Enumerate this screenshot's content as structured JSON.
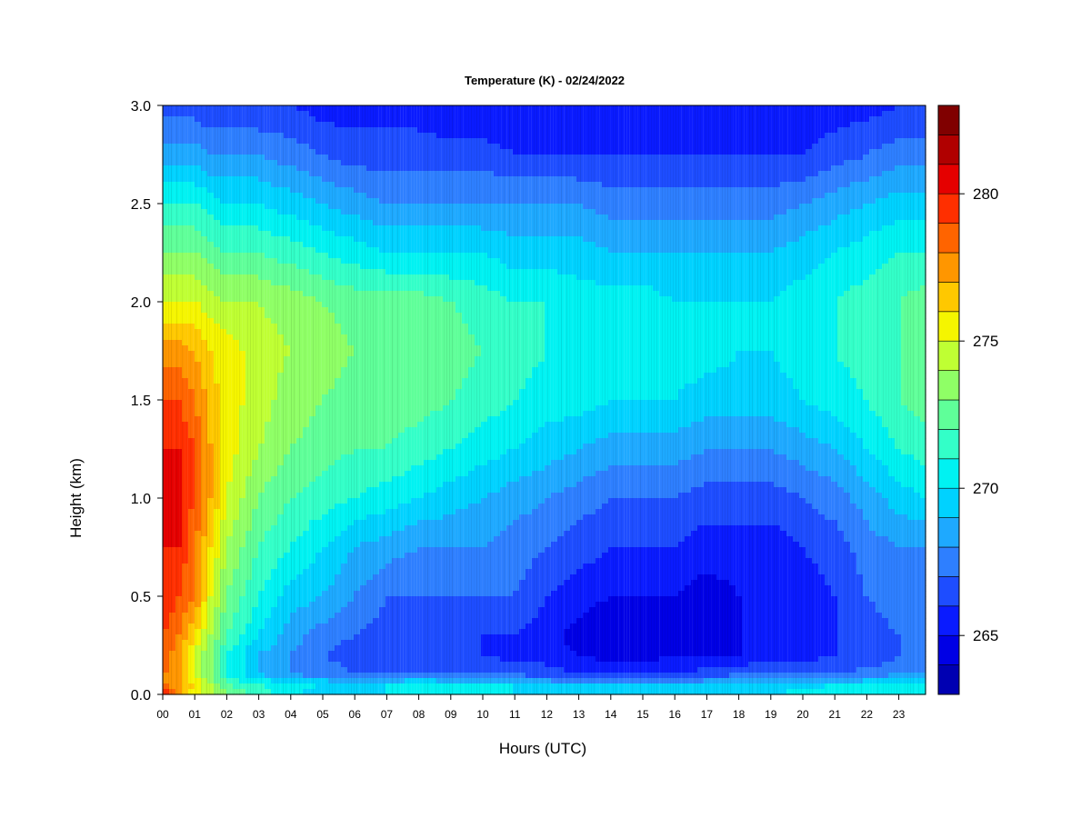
{
  "chart_data": {
    "type": "heatmap",
    "title": "Temperature (K) - 02/24/2022",
    "xlabel": "Hours (UTC)",
    "ylabel": "Height (km)",
    "x_ticks": [
      "00",
      "01",
      "02",
      "03",
      "04",
      "05",
      "06",
      "07",
      "08",
      "09",
      "10",
      "11",
      "12",
      "13",
      "14",
      "15",
      "16",
      "17",
      "18",
      "19",
      "20",
      "21",
      "22",
      "23"
    ],
    "xlim": [
      0,
      23.8
    ],
    "y_ticks": [
      "0.0",
      "0.5",
      "1.0",
      "1.5",
      "2.0",
      "2.5",
      "3.0"
    ],
    "ylim": [
      0,
      3.0
    ],
    "colorbar": {
      "min": 263,
      "max": 283,
      "ticks": [
        "265",
        "270",
        "275",
        "280"
      ],
      "tick_values": [
        265,
        270,
        275,
        280
      ],
      "levels": 20,
      "colors": [
        "#00007f",
        "#0000b2",
        "#0000e5",
        "#0a1bff",
        "#1e4dff",
        "#2e7fff",
        "#1ea9ff",
        "#00d2ff",
        "#00f2f2",
        "#33ffc8",
        "#5fff99",
        "#8fff66",
        "#bfff33",
        "#f5f500",
        "#ffc800",
        "#ff9600",
        "#ff6400",
        "#ff2f00",
        "#e50000",
        "#b00000",
        "#800000"
      ]
    },
    "heights_km": [
      0.0,
      0.05,
      0.1,
      0.2,
      0.3,
      0.5,
      0.75,
      1.0,
      1.25,
      1.5,
      1.75,
      2.0,
      2.25,
      2.5,
      2.75,
      3.0
    ],
    "hours": [
      0,
      0.5,
      1,
      1.5,
      2,
      3,
      4,
      5,
      6,
      7,
      8,
      9,
      10,
      11,
      12,
      13,
      14,
      15,
      16,
      17,
      18,
      19,
      20,
      21,
      22,
      23,
      23.8
    ],
    "values_K": [
      [
        282,
        278,
        276,
        275,
        274,
        272.5,
        271,
        270.5,
        270.5,
        271,
        271,
        271,
        271,
        271,
        271,
        271,
        271,
        271,
        271,
        271,
        271,
        271,
        271.5,
        272,
        272,
        272,
        272
      ],
      [
        279,
        278,
        277,
        275,
        273,
        272,
        271.5,
        271,
        271,
        271,
        271.5,
        271,
        271,
        271,
        270,
        270,
        270,
        270,
        270,
        270,
        270,
        270,
        270.5,
        271,
        271,
        271,
        271
      ],
      [
        279,
        278,
        276,
        274,
        272,
        270,
        269,
        268.5,
        268,
        268,
        268,
        268,
        268,
        268,
        267.5,
        267,
        267,
        267,
        267,
        267.5,
        268,
        268,
        268,
        268,
        268.5,
        269,
        269
      ],
      [
        280,
        278,
        276,
        274,
        272,
        270,
        269,
        268,
        267.5,
        267,
        267,
        267,
        267,
        266.5,
        266.5,
        266,
        265.5,
        265.5,
        266,
        266,
        266,
        266.5,
        266.5,
        267,
        267,
        268,
        268
      ],
      [
        280,
        279,
        277,
        275,
        273,
        271,
        269.5,
        268.5,
        268,
        267.5,
        267.5,
        267,
        267,
        267,
        266.5,
        265.5,
        265,
        265,
        265.5,
        265.5,
        266,
        266.5,
        266.5,
        267,
        267.5,
        268,
        268
      ],
      [
        281,
        280,
        279,
        276,
        274,
        272,
        270.5,
        270,
        269,
        268,
        268,
        268,
        268,
        268,
        267,
        266.5,
        266,
        266,
        266,
        265.5,
        266,
        266.5,
        266.5,
        267,
        268,
        268.5,
        268.5
      ],
      [
        281,
        281,
        279,
        277,
        275,
        273,
        272,
        271,
        270,
        269.5,
        269,
        269,
        269,
        268.5,
        268,
        267.5,
        267,
        267,
        267,
        266.5,
        266.5,
        266.5,
        267,
        267.5,
        268.5,
        269,
        269
      ],
      [
        281,
        281,
        280,
        278,
        276,
        274,
        273,
        272.5,
        272,
        271.5,
        271,
        270.5,
        270,
        269.5,
        269,
        268.5,
        268,
        268,
        268,
        267.5,
        267.5,
        267.5,
        268,
        268.5,
        269.5,
        270.5,
        271
      ],
      [
        281,
        281,
        280,
        278,
        276.5,
        275,
        274,
        273.5,
        273,
        273,
        272.5,
        272,
        271.5,
        271,
        270.5,
        270,
        269.5,
        269.5,
        269.5,
        269,
        269,
        269,
        269.5,
        270,
        271,
        272,
        272.5
      ],
      [
        280,
        280,
        279,
        277.5,
        276.5,
        275.5,
        274.5,
        274,
        273.5,
        273.5,
        273.5,
        273,
        272.5,
        272,
        271.5,
        271.5,
        271,
        271,
        271,
        270.5,
        270.5,
        270.5,
        271,
        271.5,
        272,
        273,
        273.5
      ],
      [
        278.5,
        278.5,
        278,
        277,
        276.5,
        275.5,
        275,
        274.5,
        274,
        274,
        274,
        273.5,
        273,
        272.5,
        272,
        272,
        272,
        271.5,
        271.5,
        271.5,
        271,
        271,
        271.5,
        272,
        272.5,
        273,
        273.5
      ],
      [
        276,
        276,
        276,
        275.5,
        275,
        275,
        274.5,
        274,
        273.5,
        273.5,
        273.5,
        273,
        272.5,
        272,
        272,
        271.5,
        271.5,
        271.5,
        271,
        271,
        271,
        271,
        271.5,
        272,
        272.5,
        273,
        273.5
      ],
      [
        274,
        274,
        274,
        273.5,
        273,
        273,
        272.5,
        272,
        271.5,
        271,
        271,
        271,
        271,
        270.5,
        270.5,
        270.5,
        270,
        270,
        270,
        270,
        270,
        270,
        270.5,
        271,
        271.5,
        272,
        272
      ],
      [
        272,
        272,
        272,
        271.5,
        271,
        271,
        270.5,
        270,
        269.5,
        269,
        269,
        269,
        269,
        269,
        269,
        269,
        268.5,
        268.5,
        268.5,
        268.5,
        268.5,
        268.5,
        269,
        269.5,
        270,
        270.5,
        270.5
      ],
      [
        269.5,
        269.5,
        269.5,
        269,
        269,
        269,
        268.5,
        268,
        267.5,
        267.5,
        267.5,
        267.5,
        267.5,
        267,
        267,
        267,
        267,
        267,
        267,
        267,
        267,
        267,
        267,
        267.5,
        268,
        268.5,
        268.5
      ],
      [
        267.5,
        267.5,
        267.5,
        267,
        267,
        267,
        267,
        266.5,
        266.5,
        266.5,
        266.5,
        266,
        266,
        266,
        266,
        266,
        266,
        266,
        266,
        266,
        266,
        266,
        266,
        266.5,
        266.5,
        267,
        267
      ]
    ]
  }
}
